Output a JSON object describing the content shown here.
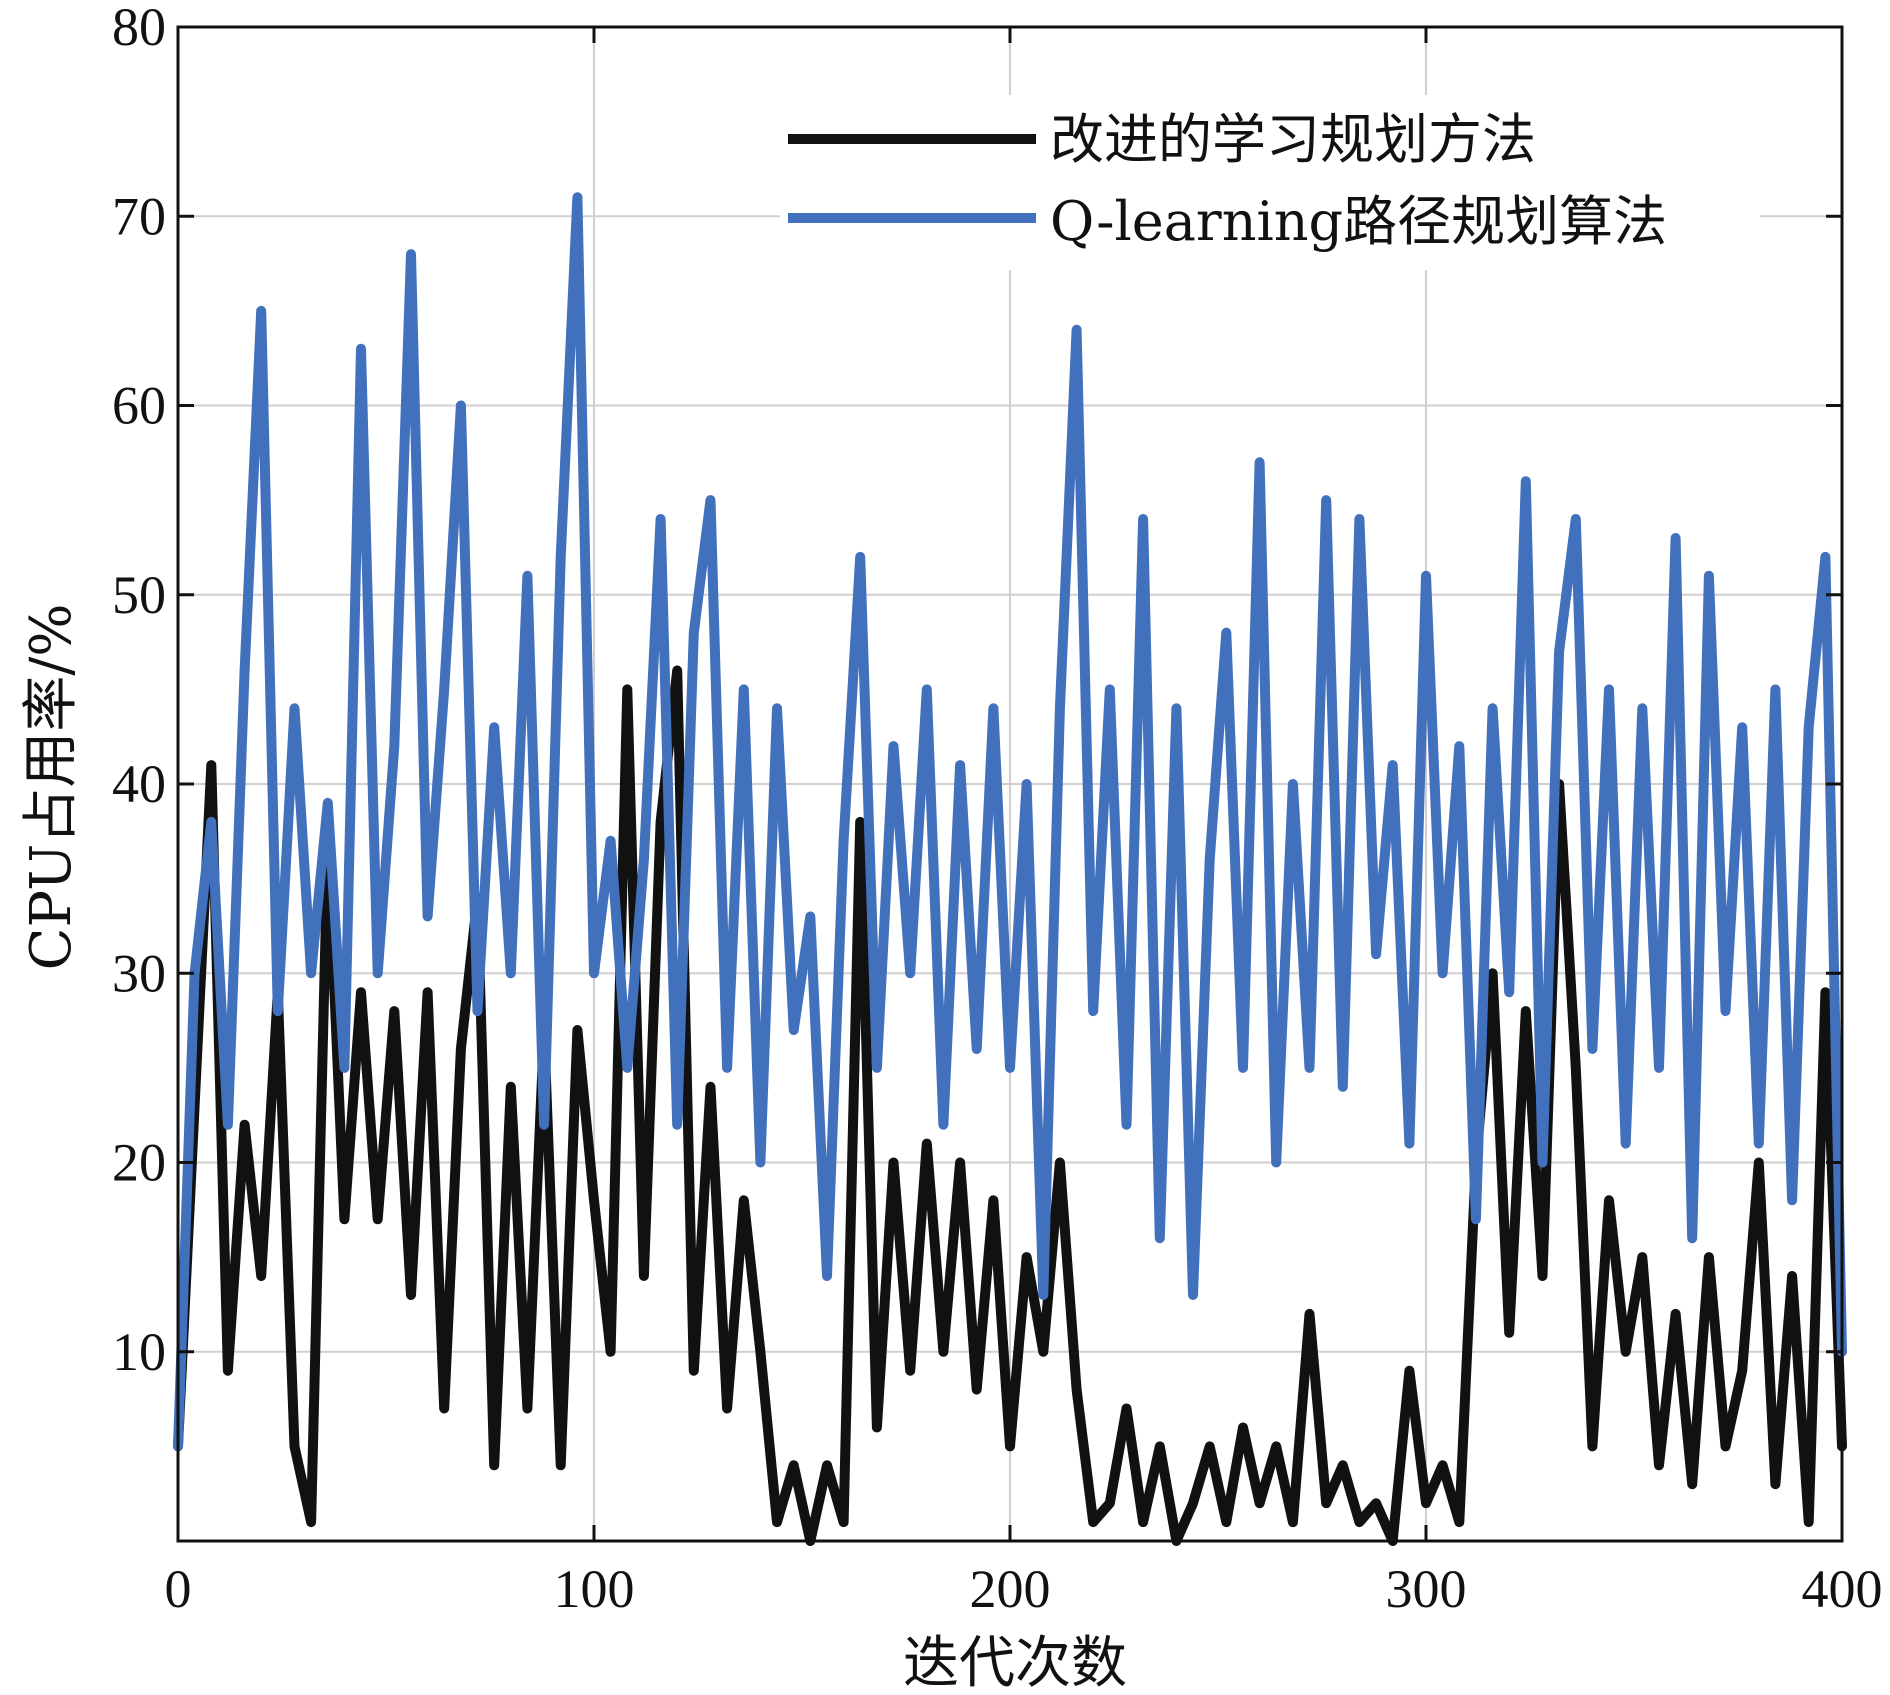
{
  "chart_data": {
    "type": "line",
    "title": "",
    "xlabel": "迭代次数",
    "ylabel": "CPU占用率/%",
    "xlim": [
      0,
      400
    ],
    "ylim": [
      0,
      80
    ],
    "xticks": [
      0,
      100,
      200,
      300,
      400
    ],
    "yticks": [
      10,
      20,
      30,
      40,
      50,
      60,
      70,
      80
    ],
    "grid": true,
    "legend_position": "top-right",
    "x": [
      0,
      4,
      8,
      12,
      16,
      20,
      24,
      28,
      32,
      36,
      40,
      44,
      48,
      52,
      56,
      60,
      64,
      68,
      72,
      76,
      80,
      84,
      88,
      92,
      96,
      100,
      104,
      108,
      112,
      116,
      120,
      124,
      128,
      132,
      136,
      140,
      144,
      148,
      152,
      156,
      160,
      164,
      168,
      172,
      176,
      180,
      184,
      188,
      192,
      196,
      200,
      204,
      208,
      212,
      216,
      220,
      224,
      228,
      232,
      236,
      240,
      244,
      248,
      252,
      256,
      260,
      264,
      268,
      272,
      276,
      280,
      284,
      288,
      292,
      296,
      300,
      304,
      308,
      312,
      316,
      320,
      324,
      328,
      332,
      336,
      340,
      344,
      348,
      352,
      356,
      360,
      364,
      368,
      372,
      376,
      380,
      384,
      388,
      392,
      396,
      400
    ],
    "series": [
      {
        "name": "改进的学习规划方法",
        "color": "#111111",
        "values": [
          5,
          23,
          41,
          9,
          22,
          14,
          29,
          5,
          1,
          37,
          17,
          29,
          17,
          28,
          13,
          29,
          7,
          26,
          34,
          4,
          24,
          7,
          27,
          4,
          27,
          18,
          10,
          45,
          14,
          38,
          46,
          9,
          24,
          7,
          18,
          10,
          1,
          4,
          0,
          4,
          1,
          38,
          6,
          20,
          9,
          21,
          10,
          20,
          8,
          18,
          5,
          15,
          10,
          20,
          8,
          1,
          2,
          7,
          1,
          5,
          0,
          2,
          5,
          1,
          6,
          2,
          5,
          1,
          12,
          2,
          4,
          1,
          2,
          0,
          9,
          2,
          4,
          1,
          20,
          30,
          11,
          28,
          14,
          40,
          25,
          5,
          18,
          10,
          15,
          4,
          12,
          3,
          15,
          5,
          9,
          20,
          3,
          14,
          1,
          29,
          5
        ]
      },
      {
        "name": "Q-learning路径规划算法",
        "color": "#4170BD",
        "values": [
          5,
          30,
          38,
          22,
          46,
          65,
          28,
          44,
          30,
          39,
          25,
          63,
          30,
          42,
          68,
          33,
          45,
          60,
          28,
          43,
          30,
          51,
          22,
          52,
          71,
          30,
          37,
          25,
          36,
          54,
          22,
          48,
          55,
          25,
          45,
          20,
          44,
          27,
          33,
          14,
          37,
          52,
          25,
          42,
          30,
          45,
          22,
          41,
          26,
          44,
          25,
          40,
          13,
          44,
          64,
          28,
          45,
          22,
          54,
          16,
          44,
          13,
          36,
          48,
          25,
          57,
          20,
          40,
          25,
          55,
          24,
          54,
          31,
          41,
          21,
          51,
          30,
          42,
          17,
          44,
          29,
          56,
          20,
          47,
          54,
          26,
          45,
          21,
          44,
          25,
          53,
          16,
          51,
          28,
          43,
          21,
          45,
          18,
          43,
          52,
          10
        ]
      }
    ]
  }
}
